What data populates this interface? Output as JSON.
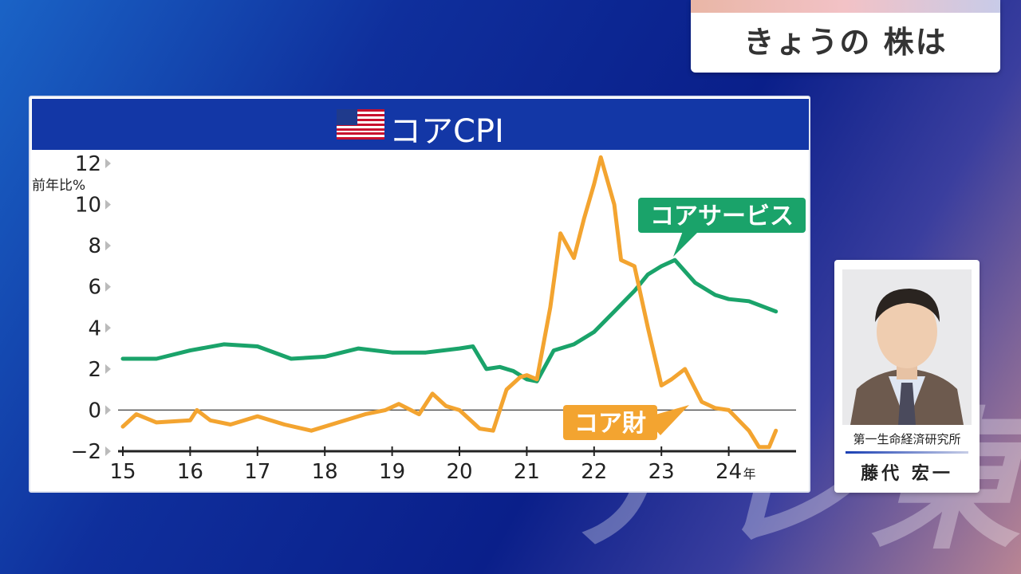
{
  "program": {
    "title": "きょうの 株は"
  },
  "watermark": "テレ東",
  "chart": {
    "title": "コアCPI",
    "flag_icon": "us-flag-icon"
  },
  "guest": {
    "affiliation": "第一生命経済研究所",
    "name": "藤代 宏一"
  },
  "colors": {
    "services": "#1aa36a",
    "goods": "#f3a430",
    "header": "#1337a6"
  },
  "chart_data": {
    "type": "line",
    "ylabel": "前年比%",
    "xlabel": "",
    "ylim": [
      -2,
      12
    ],
    "yticks": [
      12,
      10,
      8,
      6,
      4,
      2,
      0,
      -2
    ],
    "xticks": [
      "15",
      "16",
      "17",
      "18",
      "19",
      "20",
      "21",
      "22",
      "23",
      "24"
    ],
    "x_unit": "年",
    "grid": false,
    "series": [
      {
        "name": "コアサービス",
        "color": "#1aa36a",
        "points": [
          [
            2015.0,
            2.5
          ],
          [
            2015.5,
            2.5
          ],
          [
            2016.0,
            2.9
          ],
          [
            2016.5,
            3.2
          ],
          [
            2017.0,
            3.1
          ],
          [
            2017.5,
            2.5
          ],
          [
            2018.0,
            2.6
          ],
          [
            2018.5,
            3.0
          ],
          [
            2019.0,
            2.8
          ],
          [
            2019.5,
            2.8
          ],
          [
            2020.0,
            3.0
          ],
          [
            2020.2,
            3.1
          ],
          [
            2020.4,
            2.0
          ],
          [
            2020.6,
            2.1
          ],
          [
            2020.8,
            1.9
          ],
          [
            2021.0,
            1.5
          ],
          [
            2021.15,
            1.4
          ],
          [
            2021.4,
            2.9
          ],
          [
            2021.7,
            3.2
          ],
          [
            2022.0,
            3.8
          ],
          [
            2022.3,
            4.8
          ],
          [
            2022.6,
            5.8
          ],
          [
            2022.8,
            6.6
          ],
          [
            2023.0,
            7.0
          ],
          [
            2023.2,
            7.3
          ],
          [
            2023.5,
            6.2
          ],
          [
            2023.8,
            5.6
          ],
          [
            2024.0,
            5.4
          ],
          [
            2024.3,
            5.3
          ],
          [
            2024.7,
            4.8
          ]
        ]
      },
      {
        "name": "コア財",
        "color": "#f3a430",
        "points": [
          [
            2015.0,
            -0.8
          ],
          [
            2015.2,
            -0.2
          ],
          [
            2015.5,
            -0.6
          ],
          [
            2016.0,
            -0.5
          ],
          [
            2016.1,
            0.0
          ],
          [
            2016.3,
            -0.5
          ],
          [
            2016.6,
            -0.7
          ],
          [
            2017.0,
            -0.3
          ],
          [
            2017.4,
            -0.7
          ],
          [
            2017.8,
            -1.0
          ],
          [
            2018.2,
            -0.6
          ],
          [
            2018.6,
            -0.2
          ],
          [
            2018.9,
            0.0
          ],
          [
            2019.1,
            0.3
          ],
          [
            2019.4,
            -0.2
          ],
          [
            2019.6,
            0.8
          ],
          [
            2019.8,
            0.2
          ],
          [
            2020.0,
            0.0
          ],
          [
            2020.3,
            -0.9
          ],
          [
            2020.5,
            -1.0
          ],
          [
            2020.7,
            1.0
          ],
          [
            2020.9,
            1.6
          ],
          [
            2021.0,
            1.7
          ],
          [
            2021.15,
            1.5
          ],
          [
            2021.35,
            5.0
          ],
          [
            2021.5,
            8.6
          ],
          [
            2021.7,
            7.4
          ],
          [
            2021.85,
            9.3
          ],
          [
            2022.0,
            11.0
          ],
          [
            2022.1,
            12.3
          ],
          [
            2022.3,
            10.0
          ],
          [
            2022.4,
            7.3
          ],
          [
            2022.6,
            7.0
          ],
          [
            2022.8,
            4.0
          ],
          [
            2023.0,
            1.2
          ],
          [
            2023.15,
            1.5
          ],
          [
            2023.35,
            2.0
          ],
          [
            2023.6,
            0.4
          ],
          [
            2023.8,
            0.1
          ],
          [
            2024.0,
            0.0
          ],
          [
            2024.3,
            -1.0
          ],
          [
            2024.45,
            -1.8
          ],
          [
            2024.6,
            -1.8
          ],
          [
            2024.7,
            -1.0
          ]
        ]
      }
    ],
    "annotations": [
      {
        "label": "コアサービス",
        "color": "#1aa36a"
      },
      {
        "label": "コア財",
        "color": "#f3a430"
      }
    ]
  }
}
